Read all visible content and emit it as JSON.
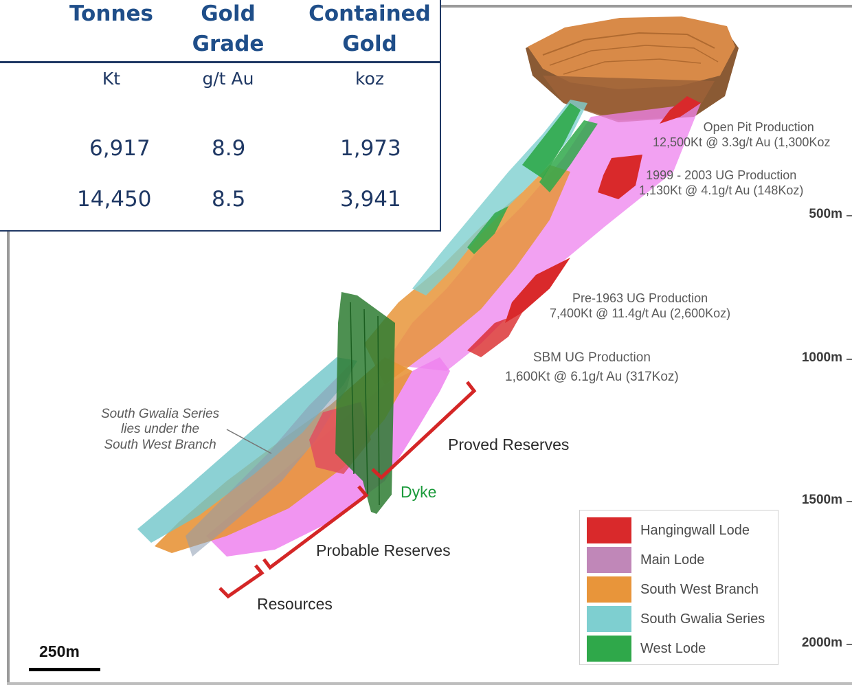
{
  "table": {
    "headers": [
      {
        "line1": "",
        "line2": "Tonnes"
      },
      {
        "line1": "Gold",
        "line2": "Grade"
      },
      {
        "line1": "Contained",
        "line2": "Gold"
      }
    ],
    "units": [
      "Kt",
      "g/t Au",
      "koz"
    ],
    "rows": [
      [
        "6,917",
        "8.9",
        "1,973"
      ],
      [
        "14,450",
        "8.5",
        "3,941"
      ]
    ]
  },
  "annotations": {
    "open_pit": {
      "title": "Open Pit Production",
      "detail": "12,500Kt @ 3.3g/t Au (1,300Koz"
    },
    "ug_1999": {
      "title": "1999 - 2003 UG Production",
      "detail": "1,130Kt @ 4.1g/t Au (148Koz)"
    },
    "pre_1963": {
      "title": "Pre-1963 UG Production",
      "detail": "7,400Kt @ 11.4g/t Au (2,600Koz)"
    },
    "sbm": {
      "title": "SBM UG Production",
      "detail": "1,600Kt @ 6.1g/t Au (317Koz)"
    }
  },
  "labels": {
    "proved": "Proved Reserves",
    "probable": "Probable Reserves",
    "resources": "Resources",
    "dyke": "Dyke",
    "note": [
      "South Gwalia Series",
      "lies under the",
      "South West Branch"
    ]
  },
  "depths": [
    "500m",
    "1000m",
    "1500m",
    "2000m"
  ],
  "scale": "250m",
  "legend": [
    {
      "label": "Hangingwall Lode",
      "color": "#d9292b"
    },
    {
      "label": "Main Lode",
      "color": "#c087b8"
    },
    {
      "label": "South West Branch",
      "color": "#e8953a"
    },
    {
      "label": "South Gwalia Series",
      "color": "#7ecfd0"
    },
    {
      "label": "West Lode",
      "color": "#2fa84a"
    }
  ],
  "colors": {
    "table_text": "#1f3864",
    "reserve_bracket": "#d42626",
    "dyke": "#2e7d32",
    "open_pit": "#d88a48",
    "main_lode_fill": "#ee82ee"
  }
}
